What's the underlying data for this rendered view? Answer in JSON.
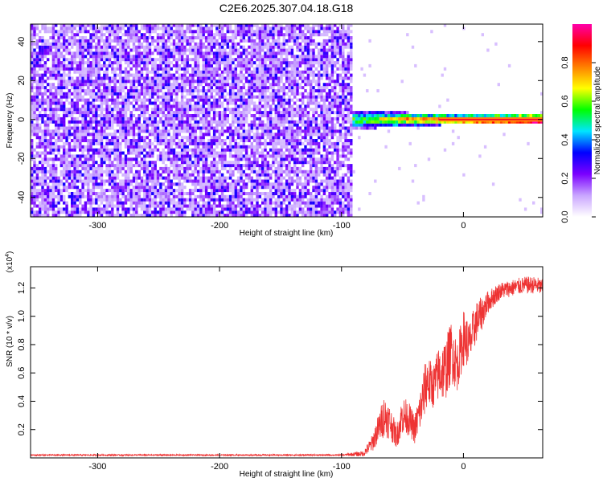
{
  "title": "C2E6.2025.307.04.18.G18",
  "chart_data": [
    {
      "type": "heatmap",
      "xlabel": "Height of straight line (km)",
      "ylabel": "Frequency (Hz)",
      "xlim": [
        -355,
        65
      ],
      "ylim": [
        -50,
        49
      ],
      "xticks": [
        -300,
        -200,
        -100,
        0
      ],
      "xtick_labels": [
        "-300",
        "-200",
        "-100",
        "0"
      ],
      "yticks": [
        -40,
        -20,
        0,
        20,
        40
      ],
      "ytick_labels": [
        "-40",
        "-20",
        "0",
        "20",
        "40"
      ],
      "noise_region_x": [
        -355,
        -92
      ],
      "signal_line_frequency_hz": 0,
      "signal_onset_km": -92,
      "colorbar": {
        "label": "Normalized spectral amplitude",
        "range": [
          0,
          1
        ],
        "ticks": [
          0.0,
          0.2,
          0.4,
          0.6,
          0.8
        ],
        "tick_labels": [
          "0.0",
          "0.2",
          "0.4",
          "0.6",
          "0.8"
        ],
        "colors": [
          "#ffffff",
          "#c9a6ff",
          "#7b00ff",
          "#0000ff",
          "#00e5ff",
          "#00ff00",
          "#ffff00",
          "#ff8000",
          "#ff0000",
          "#ff00aa"
        ]
      }
    },
    {
      "type": "line",
      "xlabel": "Height of straight line (km)",
      "ylabel": "SNR (10 * v/v)",
      "y_multiplier": "(x10",
      "y_multiplier_exp": "4",
      "y_multiplier_close": ")",
      "xlim": [
        -355,
        65
      ],
      "ylim": [
        0,
        1.35
      ],
      "xticks": [
        -300,
        -200,
        -100,
        0
      ],
      "xtick_labels": [
        "-300",
        "-200",
        "-100",
        "0"
      ],
      "yticks": [
        0.2,
        0.4,
        0.6,
        0.8,
        1.0,
        1.2
      ],
      "ytick_labels": [
        "0.2",
        "0.4",
        "0.6",
        "0.8",
        "1.0",
        "1.2"
      ],
      "series": [
        {
          "name": "SNR",
          "color": "#ee3333",
          "x": [
            -355,
            -300,
            -200,
            -100,
            -82,
            -75,
            -70,
            -65,
            -60,
            -55,
            -50,
            -45,
            -40,
            -35,
            -30,
            -25,
            -20,
            -15,
            -10,
            -5,
            0,
            5,
            10,
            15,
            20,
            30,
            40,
            50,
            60,
            65
          ],
          "y": [
            0.02,
            0.02,
            0.02,
            0.02,
            0.03,
            0.1,
            0.2,
            0.3,
            0.25,
            0.15,
            0.3,
            0.28,
            0.2,
            0.35,
            0.55,
            0.5,
            0.6,
            0.62,
            0.75,
            0.65,
            0.85,
            0.8,
            0.95,
            1.02,
            1.1,
            1.18,
            1.2,
            1.22,
            1.22,
            1.2
          ],
          "noise": [
            0.005,
            0.005,
            0.005,
            0.005,
            0.02,
            0.06,
            0.1,
            0.15,
            0.12,
            0.08,
            0.14,
            0.12,
            0.1,
            0.16,
            0.2,
            0.15,
            0.2,
            0.22,
            0.22,
            0.18,
            0.2,
            0.16,
            0.15,
            0.12,
            0.08,
            0.06,
            0.06,
            0.06,
            0.06,
            0.06
          ]
        }
      ]
    }
  ]
}
